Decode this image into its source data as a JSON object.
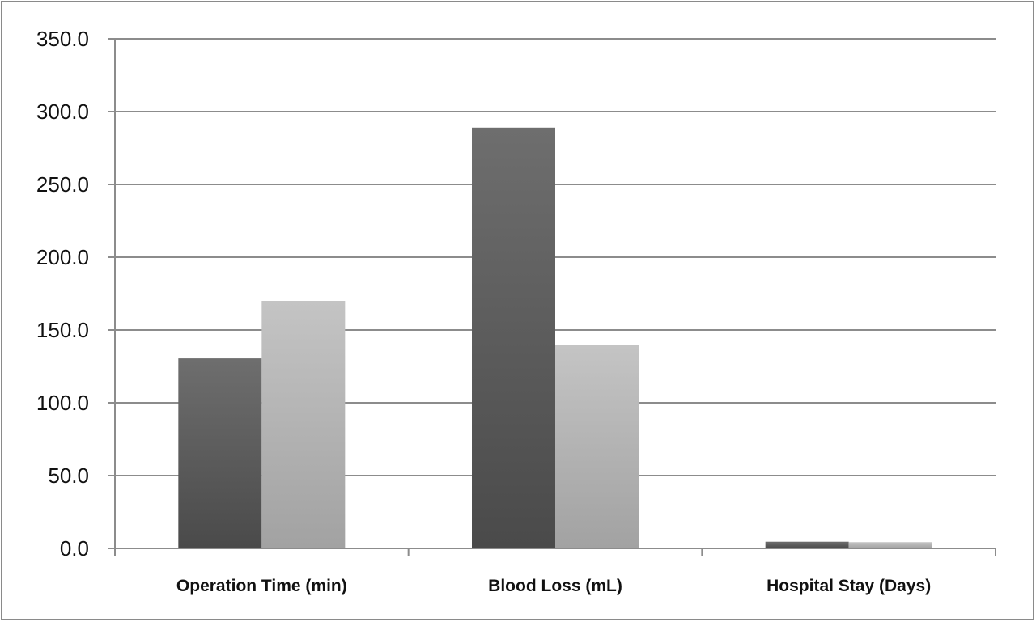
{
  "chart_data": {
    "type": "bar",
    "title": "",
    "xlabel": "",
    "ylabel": "",
    "categories": [
      "Operation Time (min)",
      "Blood Loss (mL)",
      "Hospital Stay (Days)"
    ],
    "series": [
      {
        "values": [
          130.5,
          289.0,
          4.6
        ],
        "color": "#555555"
      },
      {
        "values": [
          170.0,
          139.5,
          4.3
        ],
        "color": "#b0b0b0"
      }
    ],
    "ylim": [
      0,
      350
    ],
    "yticks": [
      0,
      50,
      100,
      150,
      200,
      250,
      300,
      350
    ],
    "ytick_labels": [
      "0.0",
      "50.0",
      "100.0",
      "150.0",
      "200.0",
      "250.0",
      "300.0",
      "350.0"
    ],
    "grid": true,
    "legend": "none"
  }
}
